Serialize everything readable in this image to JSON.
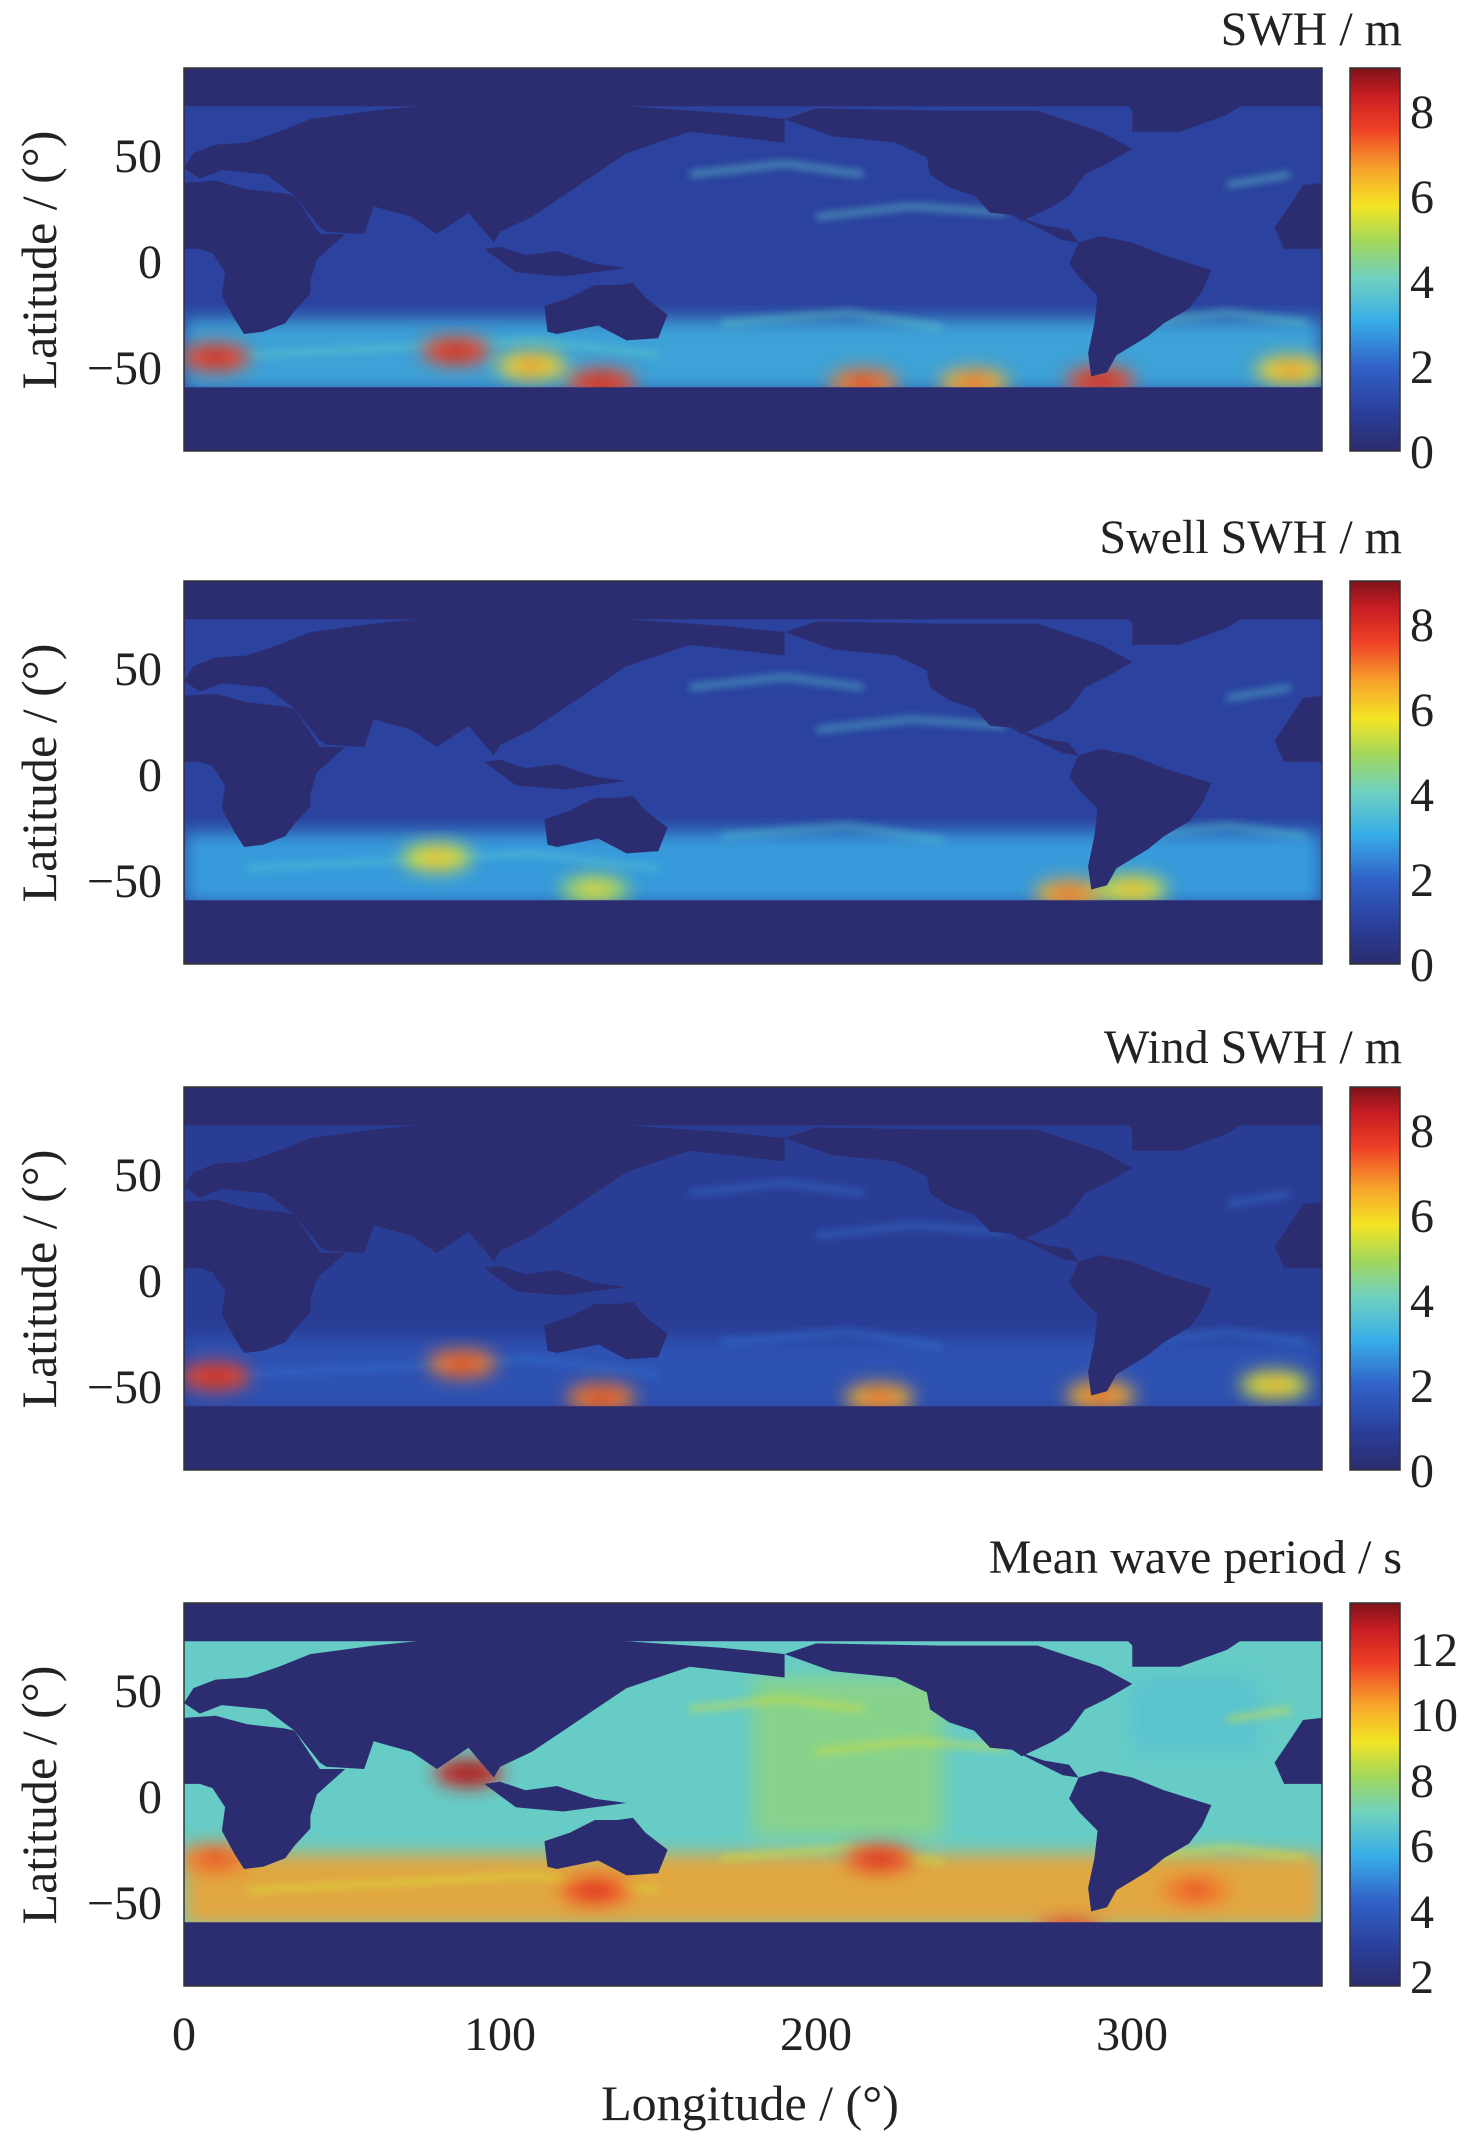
{
  "chart_data": [
    {
      "type": "heatmap",
      "title": "SWH / m",
      "ylabel": "Latitude / (°)",
      "xlabel": "",
      "xlim": [
        0,
        360
      ],
      "ylim": [
        -90,
        90
      ],
      "yticks": [
        50,
        0,
        -50
      ],
      "ytick_labels": [
        "50",
        "0",
        "−50"
      ],
      "colorbar": {
        "range": [
          0,
          9
        ],
        "ticks": [
          0,
          2,
          4,
          6,
          8
        ],
        "tick_labels": [
          "0",
          "2",
          "4",
          "6",
          "8"
        ]
      },
      "background_value": 1.0,
      "hotspots": [
        {
          "lon": 10,
          "lat": -46,
          "value": 7.5
        },
        {
          "lon": 86,
          "lat": -43,
          "value": 7.5
        },
        {
          "lon": 110,
          "lat": -50,
          "value": 6.0
        },
        {
          "lon": 132,
          "lat": -58,
          "value": 7.5
        },
        {
          "lon": 215,
          "lat": -58,
          "value": 7.0
        },
        {
          "lon": 250,
          "lat": -58,
          "value": 6.5
        },
        {
          "lon": 290,
          "lat": -57,
          "value": 7.5
        },
        {
          "lon": 350,
          "lat": -52,
          "value": 6.0
        }
      ]
    },
    {
      "type": "heatmap",
      "title": "Swell SWH / m",
      "ylabel": "Latitude / (°)",
      "xlabel": "",
      "xlim": [
        0,
        360
      ],
      "ylim": [
        -90,
        90
      ],
      "yticks": [
        50,
        0,
        -50
      ],
      "ytick_labels": [
        "50",
        "0",
        "−50"
      ],
      "colorbar": {
        "range": [
          0,
          9
        ],
        "ticks": [
          0,
          2,
          4,
          6,
          8
        ],
        "tick_labels": [
          "0",
          "2",
          "4",
          "6",
          "8"
        ]
      },
      "background_value": 1.0,
      "hotspots": [
        {
          "lon": 80,
          "lat": -40,
          "value": 5.5
        },
        {
          "lon": 130,
          "lat": -55,
          "value": 5.0
        },
        {
          "lon": 280,
          "lat": -57,
          "value": 6.5
        },
        {
          "lon": 300,
          "lat": -55,
          "value": 5.5
        }
      ]
    },
    {
      "type": "heatmap",
      "title": "Wind SWH / m",
      "ylabel": "Latitude / (°)",
      "xlabel": "",
      "xlim": [
        0,
        360
      ],
      "ylim": [
        -90,
        90
      ],
      "yticks": [
        50,
        0,
        -50
      ],
      "ytick_labels": [
        "50",
        "0",
        "−50"
      ],
      "colorbar": {
        "range": [
          0,
          9
        ],
        "ticks": [
          0,
          2,
          4,
          6,
          8
        ],
        "tick_labels": [
          "0",
          "2",
          "4",
          "6",
          "8"
        ]
      },
      "background_value": 0.8,
      "hotspots": [
        {
          "lon": 10,
          "lat": -46,
          "value": 7.5
        },
        {
          "lon": 88,
          "lat": -40,
          "value": 7.0
        },
        {
          "lon": 132,
          "lat": -56,
          "value": 7.0
        },
        {
          "lon": 220,
          "lat": -56,
          "value": 6.5
        },
        {
          "lon": 290,
          "lat": -55,
          "value": 6.5
        },
        {
          "lon": 345,
          "lat": -50,
          "value": 5.5
        }
      ]
    },
    {
      "type": "heatmap",
      "title": "Mean wave period / s",
      "ylabel": "Latitude / (°)",
      "xlabel": "Longitude / (°)",
      "xlim": [
        0,
        360
      ],
      "ylim": [
        -90,
        90
      ],
      "xticks": [
        0,
        100,
        200,
        300
      ],
      "xtick_labels": [
        "0",
        "100",
        "200",
        "300"
      ],
      "yticks": [
        50,
        0,
        -50
      ],
      "ytick_labels": [
        "50",
        "0",
        "−50"
      ],
      "colorbar": {
        "range": [
          2,
          13.5
        ],
        "ticks": [
          2,
          4,
          6,
          8,
          10,
          12
        ],
        "tick_labels": [
          "2",
          "4",
          "6",
          "8",
          "10",
          "12"
        ]
      },
      "background_value": 7.0,
      "hotspots": [
        {
          "lon": 90,
          "lat": 10,
          "value": 12.5
        },
        {
          "lon": 130,
          "lat": -45,
          "value": 11.5
        },
        {
          "lon": 220,
          "lat": -30,
          "value": 11.5
        },
        {
          "lon": 280,
          "lat": -65,
          "value": 11.5
        },
        {
          "lon": 320,
          "lat": -45,
          "value": 11.0
        },
        {
          "lon": 10,
          "lat": -30,
          "value": 11.0
        }
      ]
    }
  ]
}
